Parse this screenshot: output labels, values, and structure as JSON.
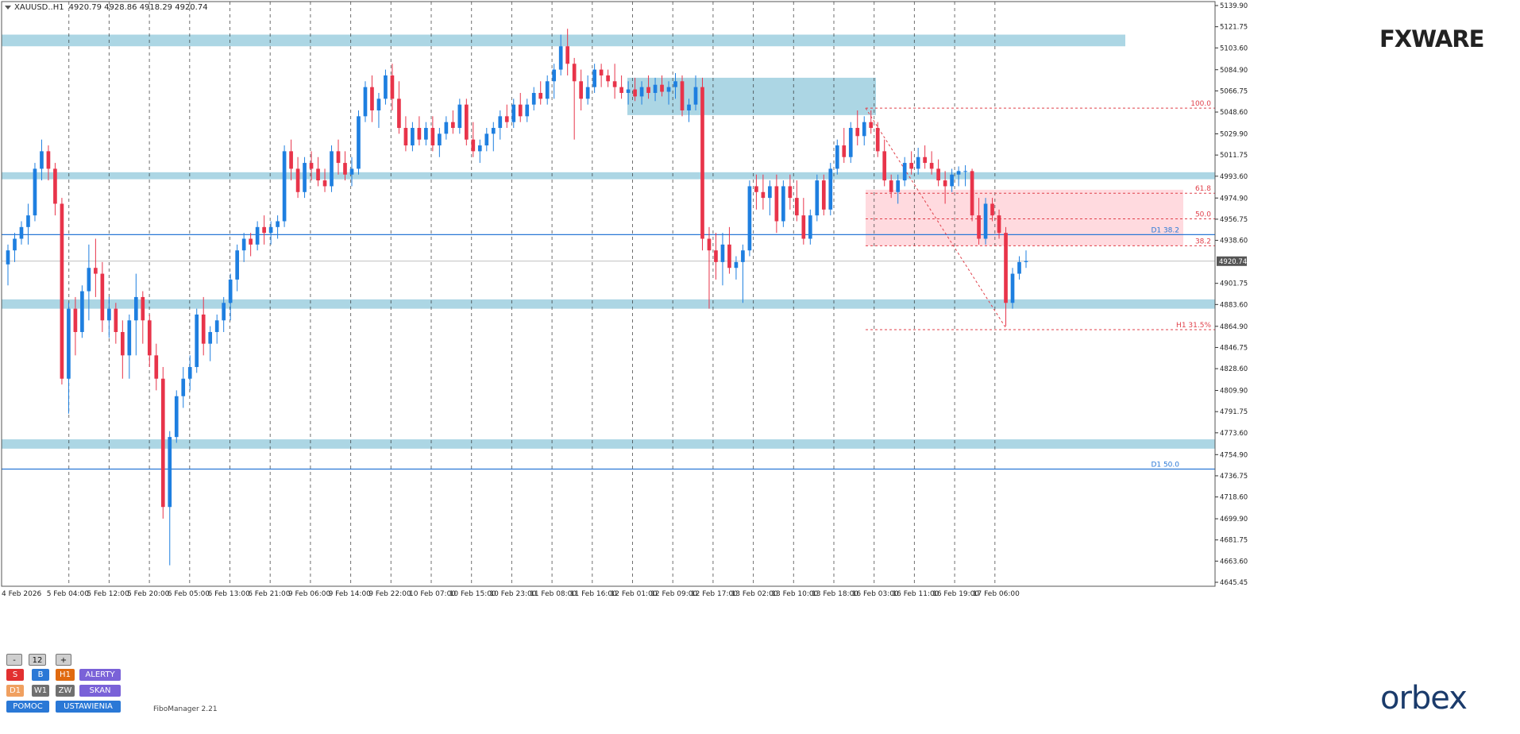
{
  "header": {
    "symbol": "XAUUSD..H1",
    "ohlc": "4920.79 4928.86 4918.29 4920.74"
  },
  "logo_top": "FXWARE",
  "logo_bottom": "orbex",
  "fibo_manager_label": "FiboManager 2.21",
  "panel": {
    "minus": "-",
    "value": "12",
    "plus": "+",
    "s": "S",
    "b": "B",
    "h1": "H1",
    "alerty": "ALERTY",
    "d1": "D1",
    "w1": "W1",
    "zw": "ZW",
    "skan": "SKAN",
    "pomoc": "POMOC",
    "ustawienia": "USTAWIENIA"
  },
  "colors": {
    "bull": "#1e7fe0",
    "bear": "#e8344a",
    "zone": "#a8d4e3",
    "fib_zone": "#ffd6dc",
    "hline": "#2a78d6",
    "fib_line": "#e0404a",
    "bg": "#ffffff"
  },
  "chart_data": {
    "type": "candlestick",
    "symbol": "XAUUSD..H1",
    "ylim": [
      4645.45,
      5139.9
    ],
    "y_ticks": [
      "5139.90",
      "5121.75",
      "5103.60",
      "5084.90",
      "5066.75",
      "5048.60",
      "5029.90",
      "5011.75",
      "4993.60",
      "4974.90",
      "4956.75",
      "4938.60",
      "4920.74",
      "4901.75",
      "4883.60",
      "4864.90",
      "4846.75",
      "4828.60",
      "4809.90",
      "4791.75",
      "4773.60",
      "4754.90",
      "4736.75",
      "4718.60",
      "4699.90",
      "4681.75",
      "4663.60",
      "4645.45"
    ],
    "x_ticks": [
      "4 Feb 2026",
      "5 Feb 04:00",
      "5 Feb 12:00",
      "5 Feb 20:00",
      "6 Feb 05:00",
      "6 Feb 13:00",
      "6 Feb 21:00",
      "9 Feb 06:00",
      "9 Feb 14:00",
      "9 Feb 22:00",
      "10 Feb 07:00",
      "10 Feb 15:00",
      "10 Feb 23:00",
      "11 Feb 08:00",
      "11 Feb 16:00",
      "12 Feb 01:00",
      "12 Feb 09:00",
      "12 Feb 17:00",
      "13 Feb 02:00",
      "13 Feb 10:00",
      "13 Feb 18:00",
      "16 Feb 03:00",
      "16 Feb 11:00",
      "16 Feb 19:00",
      "17 Feb 06:00"
    ],
    "current_price": 4920.74,
    "candles": [
      [
        4918,
        4935,
        4900,
        4930
      ],
      [
        4930,
        4945,
        4920,
        4940
      ],
      [
        4940,
        4955,
        4935,
        4950
      ],
      [
        4950,
        4970,
        4935,
        4960
      ],
      [
        4960,
        5005,
        4955,
        5000
      ],
      [
        5000,
        5025,
        4990,
        5015
      ],
      [
        5015,
        5020,
        4990,
        5000
      ],
      [
        5000,
        5005,
        4960,
        4970
      ],
      [
        4970,
        4975,
        4815,
        4820
      ],
      [
        4820,
        4885,
        4790,
        4880
      ],
      [
        4880,
        4890,
        4840,
        4860
      ],
      [
        4860,
        4900,
        4855,
        4895
      ],
      [
        4895,
        4935,
        4870,
        4915
      ],
      [
        4915,
        4940,
        4890,
        4910
      ],
      [
        4910,
        4920,
        4860,
        4870
      ],
      [
        4870,
        4890,
        4855,
        4880
      ],
      [
        4880,
        4885,
        4850,
        4860
      ],
      [
        4860,
        4870,
        4820,
        4840
      ],
      [
        4840,
        4875,
        4820,
        4870
      ],
      [
        4870,
        4910,
        4840,
        4890
      ],
      [
        4890,
        4895,
        4850,
        4870
      ],
      [
        4870,
        4875,
        4830,
        4840
      ],
      [
        4840,
        4850,
        4810,
        4820
      ],
      [
        4820,
        4830,
        4700,
        4710
      ],
      [
        4710,
        4775,
        4660,
        4770
      ],
      [
        4770,
        4810,
        4765,
        4805
      ],
      [
        4805,
        4830,
        4795,
        4820
      ],
      [
        4820,
        4840,
        4810,
        4830
      ],
      [
        4830,
        4880,
        4825,
        4875
      ],
      [
        4875,
        4890,
        4840,
        4850
      ],
      [
        4850,
        4865,
        4835,
        4860
      ],
      [
        4860,
        4875,
        4850,
        4870
      ],
      [
        4870,
        4890,
        4860,
        4885
      ],
      [
        4885,
        4910,
        4870,
        4905
      ],
      [
        4905,
        4935,
        4895,
        4930
      ],
      [
        4930,
        4945,
        4920,
        4940
      ],
      [
        4940,
        4945,
        4925,
        4935
      ],
      [
        4935,
        4955,
        4930,
        4950
      ],
      [
        4950,
        4960,
        4935,
        4945
      ],
      [
        4945,
        4955,
        4935,
        4950
      ],
      [
        4950,
        4960,
        4940,
        4955
      ],
      [
        4955,
        5020,
        4950,
        5015
      ],
      [
        5015,
        5025,
        4990,
        5000
      ],
      [
        5000,
        5010,
        4975,
        4980
      ],
      [
        4980,
        5010,
        4975,
        5005
      ],
      [
        5005,
        5015,
        4990,
        5000
      ],
      [
        5000,
        5010,
        4985,
        4990
      ],
      [
        4990,
        5000,
        4980,
        4985
      ],
      [
        4985,
        5020,
        4980,
        5015
      ],
      [
        5015,
        5025,
        4995,
        5005
      ],
      [
        5005,
        5015,
        4990,
        4995
      ],
      [
        4995,
        5010,
        4985,
        5000
      ],
      [
        5000,
        5050,
        4995,
        5045
      ],
      [
        5045,
        5075,
        5040,
        5070
      ],
      [
        5070,
        5080,
        5040,
        5050
      ],
      [
        5050,
        5065,
        5035,
        5060
      ],
      [
        5060,
        5085,
        5055,
        5080
      ],
      [
        5080,
        5090,
        5050,
        5060
      ],
      [
        5060,
        5075,
        5030,
        5035
      ],
      [
        5035,
        5045,
        5015,
        5020
      ],
      [
        5020,
        5040,
        5015,
        5035
      ],
      [
        5035,
        5045,
        5020,
        5025
      ],
      [
        5025,
        5040,
        5020,
        5035
      ],
      [
        5035,
        5045,
        5015,
        5020
      ],
      [
        5020,
        5035,
        5010,
        5030
      ],
      [
        5030,
        5045,
        5025,
        5040
      ],
      [
        5040,
        5050,
        5030,
        5035
      ],
      [
        5035,
        5060,
        5030,
        5055
      ],
      [
        5055,
        5060,
        5020,
        5025
      ],
      [
        5025,
        5040,
        5010,
        5015
      ],
      [
        5015,
        5025,
        5005,
        5020
      ],
      [
        5020,
        5035,
        5015,
        5030
      ],
      [
        5030,
        5040,
        5015,
        5035
      ],
      [
        5035,
        5050,
        5025,
        5045
      ],
      [
        5045,
        5055,
        5035,
        5040
      ],
      [
        5040,
        5060,
        5035,
        5055
      ],
      [
        5055,
        5065,
        5040,
        5045
      ],
      [
        5045,
        5060,
        5040,
        5055
      ],
      [
        5055,
        5070,
        5050,
        5065
      ],
      [
        5065,
        5075,
        5055,
        5060
      ],
      [
        5060,
        5080,
        5055,
        5075
      ],
      [
        5075,
        5090,
        5060,
        5085
      ],
      [
        5085,
        5115,
        5080,
        5105
      ],
      [
        5105,
        5120,
        5080,
        5090
      ],
      [
        5090,
        5095,
        5025,
        5075
      ],
      [
        5075,
        5085,
        5050,
        5060
      ],
      [
        5060,
        5080,
        5055,
        5070
      ],
      [
        5070,
        5090,
        5065,
        5085
      ],
      [
        5085,
        5090,
        5070,
        5080
      ],
      [
        5080,
        5085,
        5070,
        5075
      ],
      [
        5075,
        5090,
        5060,
        5070
      ],
      [
        5070,
        5080,
        5060,
        5065
      ],
      [
        5065,
        5075,
        5055,
        5068
      ],
      [
        5068,
        5078,
        5058,
        5062
      ],
      [
        5062,
        5075,
        5055,
        5070
      ],
      [
        5070,
        5080,
        5060,
        5065
      ],
      [
        5065,
        5078,
        5058,
        5072
      ],
      [
        5072,
        5080,
        5062,
        5066
      ],
      [
        5066,
        5075,
        5055,
        5070
      ],
      [
        5070,
        5082,
        5060,
        5075
      ],
      [
        5075,
        5080,
        5045,
        5050
      ],
      [
        5050,
        5060,
        5040,
        5055
      ],
      [
        5055,
        5080,
        5050,
        5070
      ],
      [
        5070,
        5078,
        4930,
        4940
      ],
      [
        4940,
        4950,
        4880,
        4930
      ],
      [
        4930,
        4945,
        4905,
        4920
      ],
      [
        4920,
        4945,
        4900,
        4935
      ],
      [
        4935,
        4950,
        4910,
        4915
      ],
      [
        4915,
        4925,
        4905,
        4920
      ],
      [
        4920,
        4935,
        4885,
        4930
      ],
      [
        4930,
        4990,
        4925,
        4985
      ],
      [
        4985,
        4995,
        4965,
        4980
      ],
      [
        4980,
        4995,
        4965,
        4975
      ],
      [
        4975,
        4990,
        4960,
        4985
      ],
      [
        4985,
        4995,
        4945,
        4955
      ],
      [
        4955,
        4990,
        4950,
        4985
      ],
      [
        4985,
        4995,
        4965,
        4975
      ],
      [
        4975,
        4990,
        4955,
        4960
      ],
      [
        4960,
        4975,
        4935,
        4940
      ],
      [
        4940,
        4965,
        4935,
        4960
      ],
      [
        4960,
        4995,
        4955,
        4990
      ],
      [
        4990,
        4995,
        4960,
        4965
      ],
      [
        4965,
        5005,
        4960,
        5000
      ],
      [
        5000,
        5025,
        4995,
        5020
      ],
      [
        5020,
        5035,
        5005,
        5010
      ],
      [
        5010,
        5040,
        5005,
        5035
      ],
      [
        5035,
        5050,
        5020,
        5028
      ],
      [
        5028,
        5045,
        5020,
        5040
      ],
      [
        5040,
        5050,
        5030,
        5035
      ],
      [
        5035,
        5040,
        5010,
        5015
      ],
      [
        5015,
        5025,
        4985,
        4990
      ],
      [
        4990,
        4995,
        4975,
        4980
      ],
      [
        4980,
        4995,
        4970,
        4990
      ],
      [
        4990,
        5010,
        4985,
        5005
      ],
      [
        5005,
        5015,
        4995,
        5000
      ],
      [
        5000,
        5018,
        4995,
        5010
      ],
      [
        5010,
        5020,
        5000,
        5005
      ],
      [
        5005,
        5015,
        4995,
        5000
      ],
      [
        5000,
        5008,
        4985,
        4990
      ],
      [
        4990,
        4998,
        4970,
        4985
      ],
      [
        4985,
        5000,
        4980,
        4995
      ],
      [
        4995,
        5002,
        4985,
        4998
      ],
      [
        4998,
        5003,
        4985,
        4998
      ],
      [
        4998,
        5000,
        4955,
        4960
      ],
      [
        4960,
        4975,
        4935,
        4940
      ],
      [
        4940,
        4975,
        4935,
        4970
      ],
      [
        4970,
        4975,
        4955,
        4960
      ],
      [
        4960,
        4965,
        4940,
        4945
      ],
      [
        4945,
        4950,
        4865,
        4885
      ],
      [
        4885,
        4915,
        4880,
        4910
      ],
      [
        4910,
        4925,
        4905,
        4920
      ],
      [
        4920,
        4930,
        4915,
        4921
      ]
    ],
    "zones": [
      {
        "from": 5105,
        "to": 5115,
        "color": "#a8d4e3"
      },
      {
        "from": 4991,
        "to": 4997,
        "color": "#a8d4e3"
      },
      {
        "from": 4880,
        "to": 4888,
        "color": "#a8d4e3"
      },
      {
        "from": 4760,
        "to": 4768,
        "color": "#a8d4e3"
      },
      {
        "from": 5046,
        "to": 5078,
        "color": "#a8d4e3"
      },
      {
        "from": 4934,
        "to": 4982,
        "color": "#ffd6dc"
      }
    ],
    "horizontal_lines": [
      {
        "price": 4943.5,
        "label": "D1 38.2",
        "color": "#2a78d6"
      },
      {
        "price": 4742.5,
        "label": "D1 50.0",
        "color": "#2a78d6"
      }
    ],
    "fib_levels": [
      {
        "price": 5052,
        "label": "100.0"
      },
      {
        "price": 4979,
        "label": "61.8"
      },
      {
        "price": 4957,
        "label": "50.0"
      },
      {
        "price": 4934,
        "label": "38.2"
      },
      {
        "price": 4862,
        "label": "H1 31.5%"
      }
    ],
    "grid": true
  }
}
